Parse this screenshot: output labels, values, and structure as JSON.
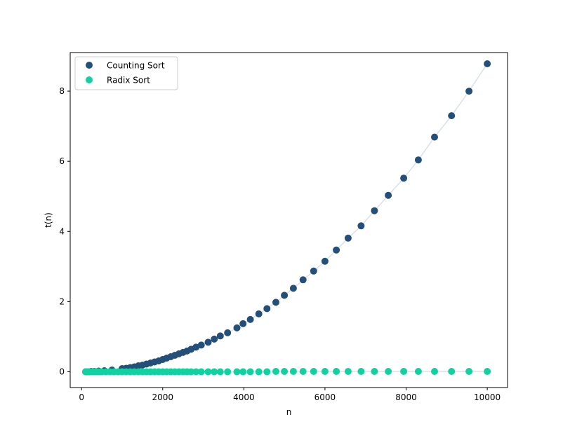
{
  "chart_data": {
    "type": "scatter",
    "title": "",
    "xlabel": "n",
    "ylabel": "t(n)",
    "xlim": [
      -280,
      10500
    ],
    "ylim": [
      -0.45,
      9.1
    ],
    "xticks": [
      0,
      2000,
      4000,
      6000,
      8000,
      10000
    ],
    "xtick_labels": [
      "0",
      "2000",
      "4000",
      "6000",
      "8000",
      "10000"
    ],
    "yticks": [
      0,
      2,
      4,
      6,
      8
    ],
    "ytick_labels": [
      "0",
      "2",
      "4",
      "6",
      "8"
    ],
    "grid": false,
    "legend": {
      "placement": "upper-left",
      "entries": [
        "Counting Sort",
        "Radix Sort"
      ]
    },
    "fit_line_color": "#d9e1e8",
    "series": [
      {
        "name": "Counting Sort",
        "color": "#234f78",
        "x": [
          100,
          133,
          178,
          237,
          316,
          421,
          562,
          750,
          1000,
          1100,
          1200,
          1300,
          1400,
          1500,
          1600,
          1700,
          1800,
          1900,
          2000,
          2100,
          2200,
          2300,
          2400,
          2500,
          2600,
          2700,
          2820,
          2950,
          3120,
          3270,
          3420,
          3600,
          3830,
          3980,
          4160,
          4370,
          4570,
          4790,
          5000,
          5220,
          5460,
          5720,
          6000,
          6280,
          6570,
          6890,
          7220,
          7560,
          7940,
          8300,
          8700,
          9120,
          9550,
          10000
        ],
        "y": [
          0.0,
          0.0,
          0.0,
          0.01,
          0.01,
          0.02,
          0.03,
          0.05,
          0.09,
          0.1,
          0.12,
          0.14,
          0.17,
          0.19,
          0.22,
          0.25,
          0.28,
          0.31,
          0.35,
          0.39,
          0.43,
          0.47,
          0.51,
          0.55,
          0.59,
          0.64,
          0.7,
          0.76,
          0.84,
          0.93,
          1.02,
          1.11,
          1.25,
          1.37,
          1.49,
          1.65,
          1.8,
          1.98,
          2.18,
          2.38,
          2.62,
          2.87,
          3.15,
          3.47,
          3.81,
          4.16,
          4.59,
          5.03,
          5.52,
          6.04,
          6.69,
          7.3,
          8.0,
          8.78
        ]
      },
      {
        "name": "Radix Sort",
        "color": "#11d1a1",
        "x": [
          100,
          120,
          140,
          160,
          180,
          200,
          250,
          300,
          350,
          400,
          450,
          500,
          600,
          700,
          800,
          900,
          1000,
          1100,
          1200,
          1300,
          1400,
          1500,
          1600,
          1700,
          1800,
          1900,
          2000,
          2100,
          2200,
          2300,
          2400,
          2500,
          2600,
          2700,
          2820,
          2950,
          3120,
          3270,
          3420,
          3600,
          3830,
          3980,
          4160,
          4370,
          4570,
          4790,
          5000,
          5220,
          5460,
          5720,
          6000,
          6280,
          6570,
          6890,
          7220,
          7560,
          7940,
          8300,
          8700,
          9120,
          9550,
          10000
        ],
        "y": [
          0.0,
          0.0,
          0.0,
          0.0,
          0.0,
          0.0,
          0.0,
          0.0,
          0.0,
          0.0,
          0.0,
          0.0,
          0.0,
          0.0,
          0.0,
          0.0,
          0.0,
          0.0,
          0.0,
          0.0,
          0.0,
          0.0,
          0.0,
          0.0,
          0.0,
          0.0,
          0.0,
          0.0,
          0.0,
          0.0,
          0.0,
          0.0,
          0.0,
          0.0,
          0.0,
          0.0,
          0.0,
          0.0,
          0.0,
          0.0,
          0.0,
          0.0,
          0.0,
          0.0,
          0.0,
          0.01,
          0.01,
          0.01,
          0.01,
          0.01,
          0.01,
          0.01,
          0.01,
          0.01,
          0.01,
          0.01,
          0.01,
          0.01,
          0.01,
          0.01,
          0.01,
          0.01
        ]
      }
    ]
  }
}
